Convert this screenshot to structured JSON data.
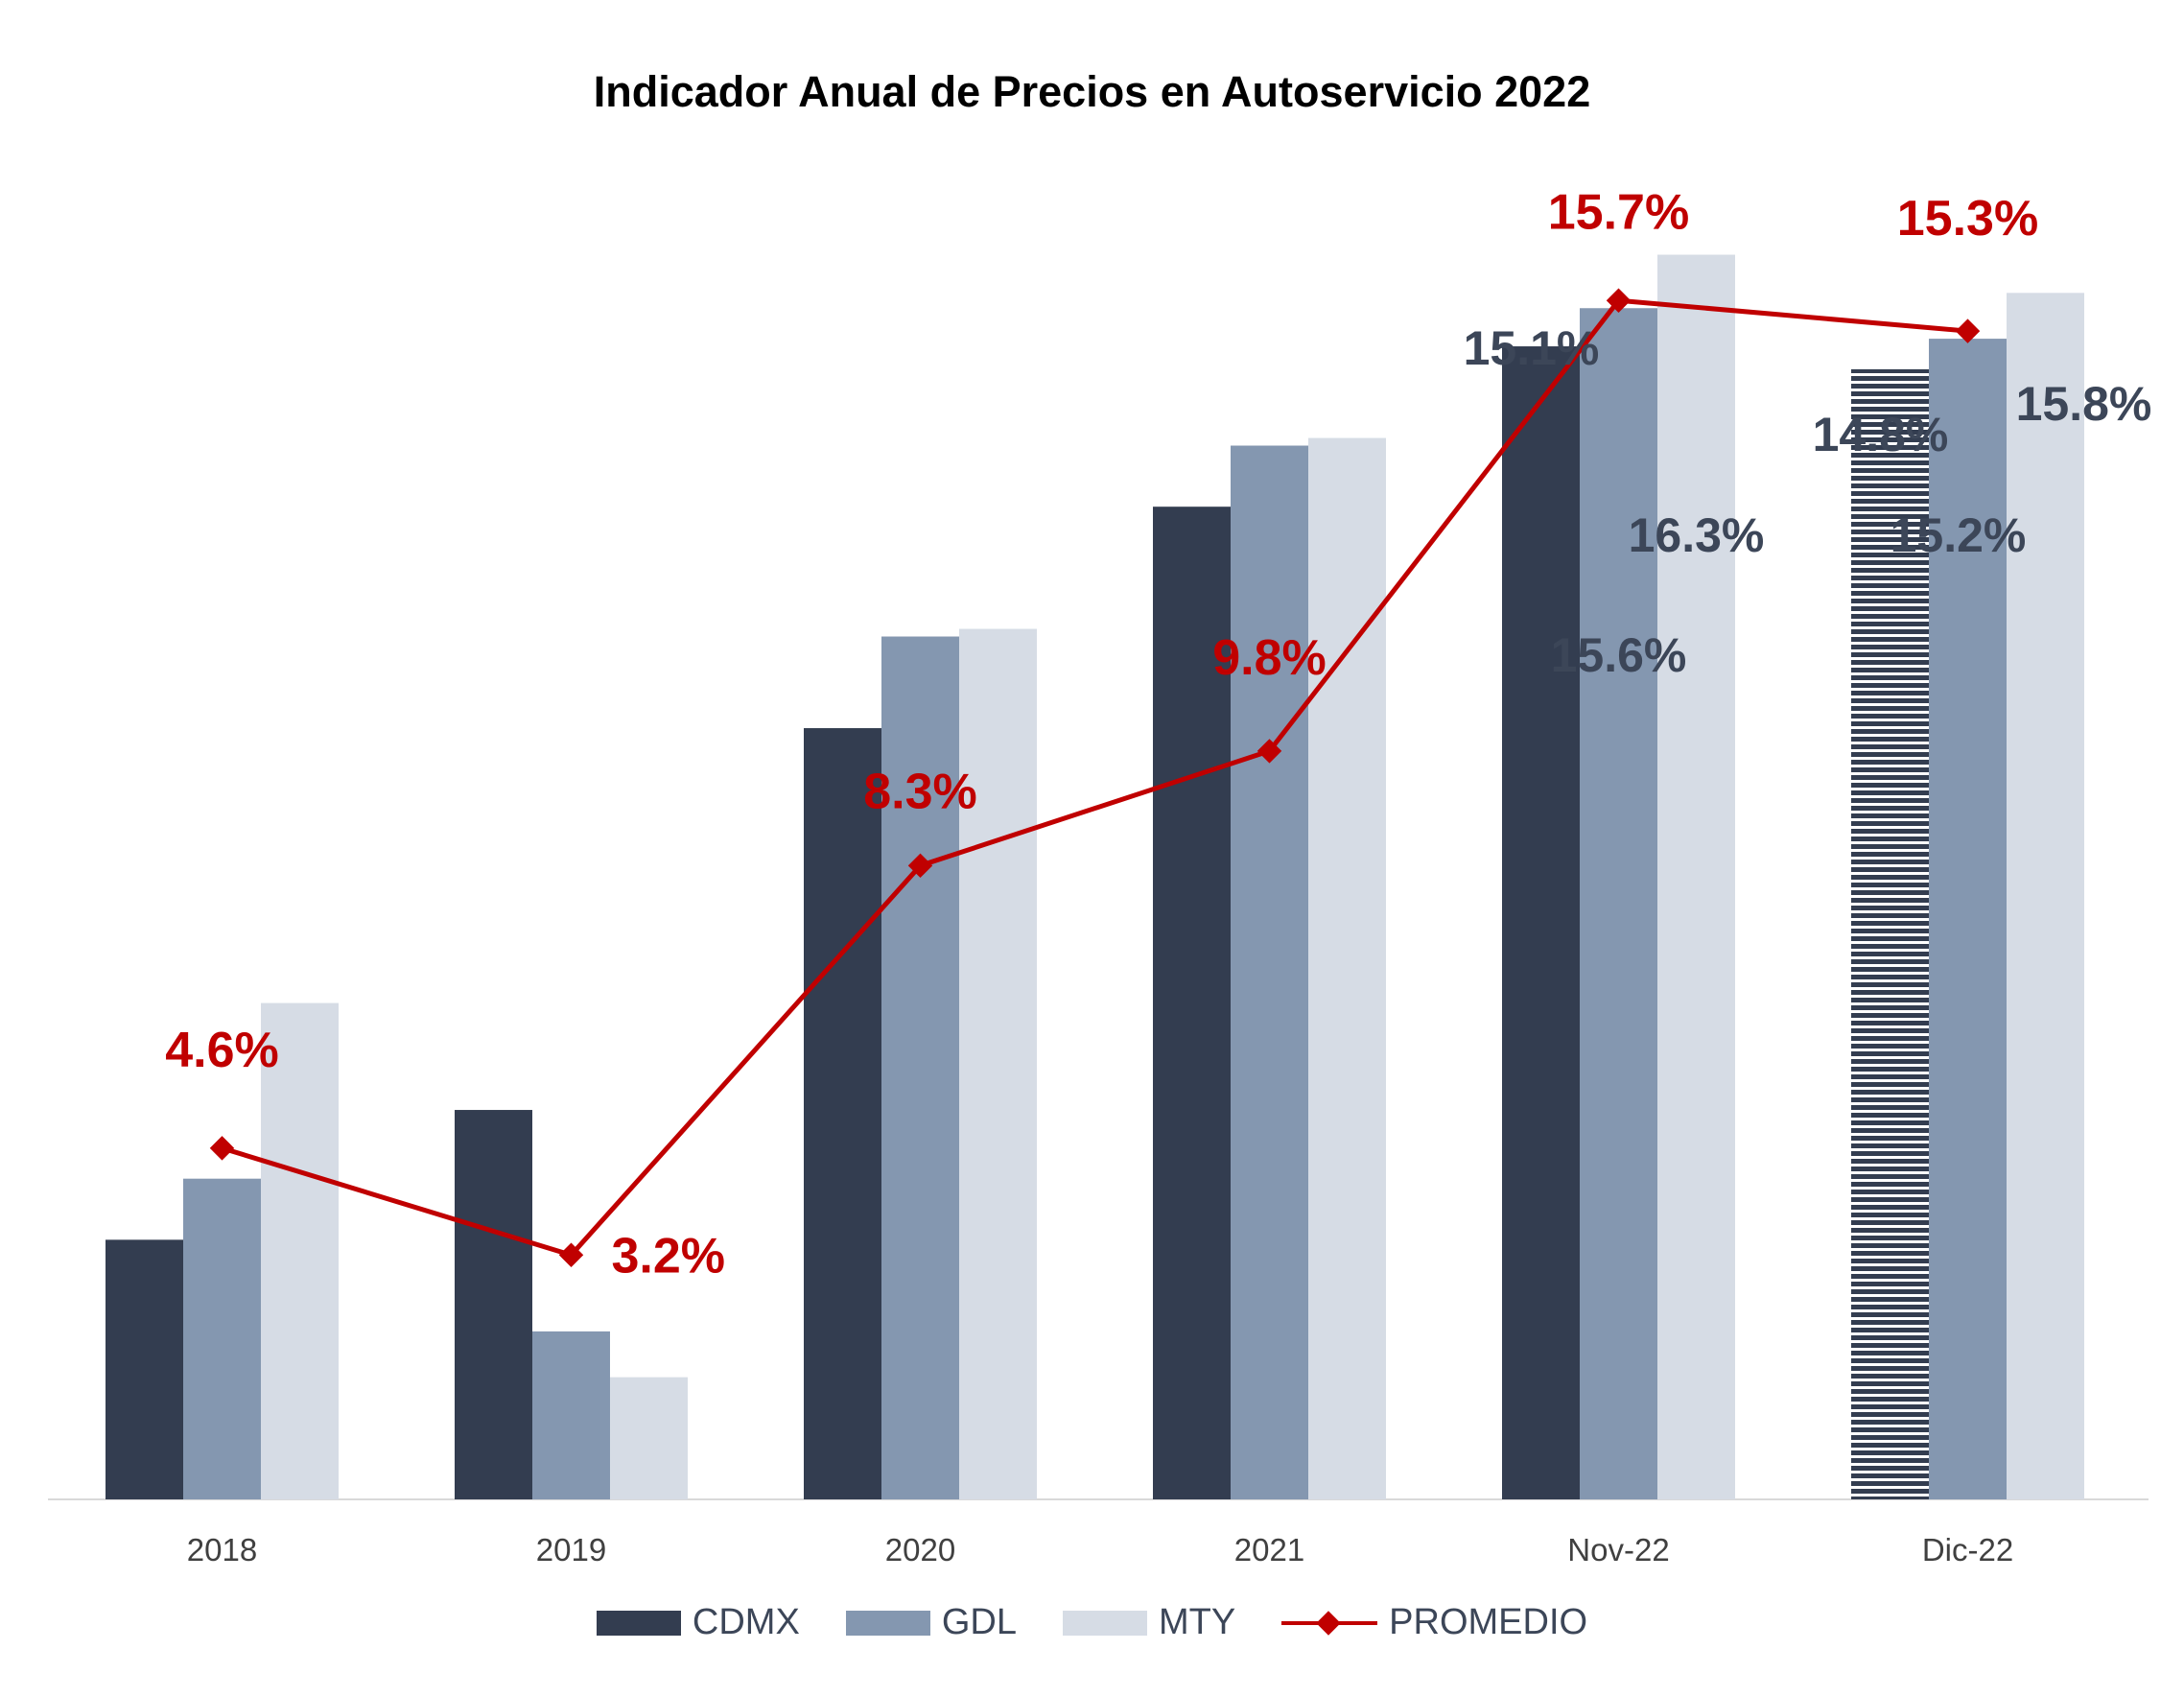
{
  "chart_data": {
    "type": "bar",
    "title": "Indicador Anual de Precios en Autoservicio 2022",
    "categories": [
      "2018",
      "2019",
      "2020",
      "2021",
      "Nov-22",
      "Dic-22"
    ],
    "ylim": [
      0,
      17.5
    ],
    "grid": false,
    "legend_position": "bottom",
    "series": [
      {
        "name": "CDMX",
        "type": "bar",
        "color": "#333d50",
        "values": [
          3.4,
          5.1,
          10.1,
          13.0,
          15.1,
          14.8
        ],
        "labels": [
          "",
          "",
          "",
          "",
          "15.1%",
          "14.8%"
        ]
      },
      {
        "name": "GDL",
        "type": "bar",
        "color": "#8497b0",
        "values": [
          4.2,
          2.2,
          11.3,
          13.8,
          15.6,
          15.2
        ],
        "labels": [
          "",
          "",
          "",
          "",
          "15.6%",
          "15.2%"
        ]
      },
      {
        "name": "MTY",
        "type": "bar",
        "color": "#d6dce5",
        "values": [
          6.5,
          1.6,
          11.4,
          13.9,
          16.3,
          15.8
        ],
        "labels": [
          "",
          "",
          "",
          "",
          "16.3%",
          "15.8%"
        ]
      },
      {
        "name": "PROMEDIO",
        "type": "line",
        "color": "#c00000",
        "values": [
          4.6,
          3.2,
          8.3,
          9.8,
          15.7,
          15.3
        ],
        "labels": [
          "4.6%",
          "3.2%",
          "8.3%",
          "9.8%",
          "15.7%",
          "15.3%"
        ]
      }
    ]
  }
}
